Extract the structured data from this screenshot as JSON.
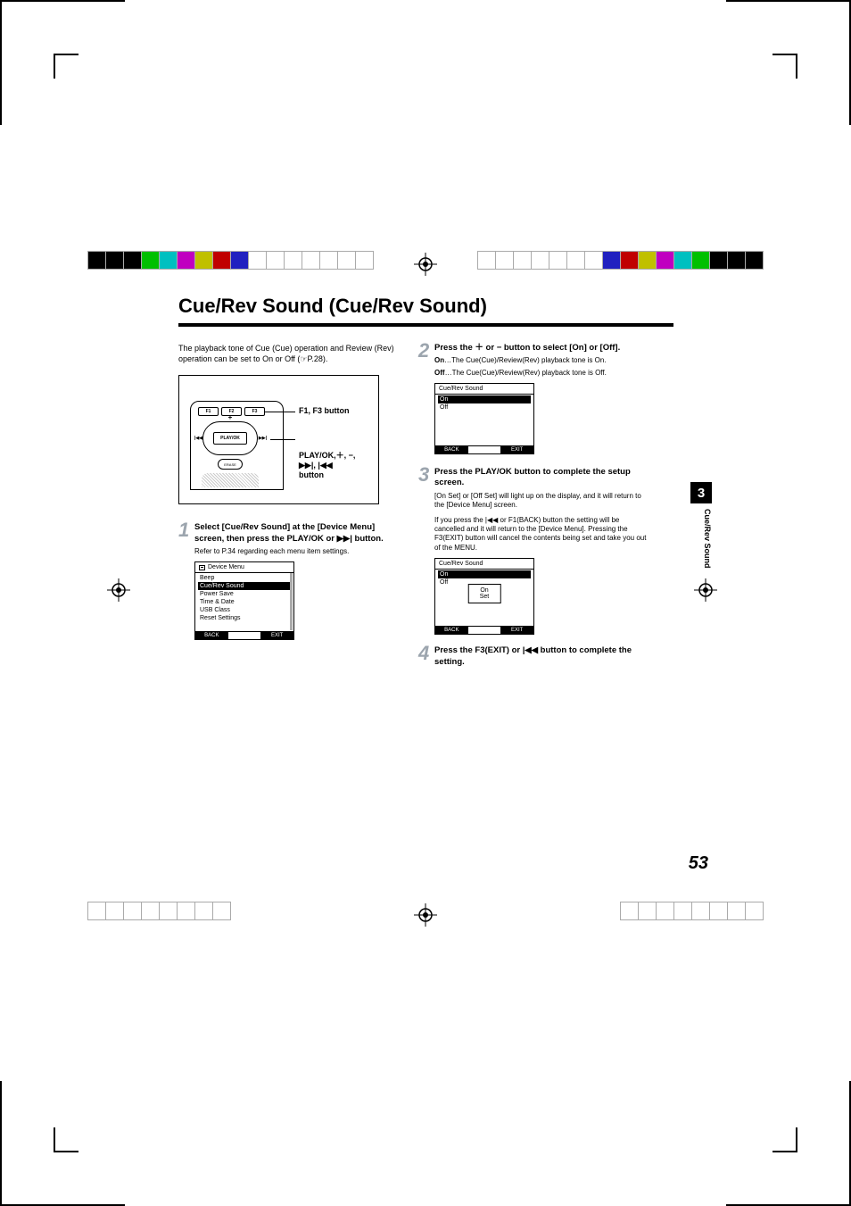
{
  "title": "Cue/Rev Sound (Cue/Rev Sound)",
  "intro": "The playback tone of Cue (Cue) operation and Review (Rev) operation can be set to On or Off (☞P.28).",
  "diagram": {
    "f1": "F1",
    "f2": "F2",
    "f3": "F3",
    "playok": "PLAY/OK",
    "erase": "ERASE",
    "label1": "F1, F3 button",
    "label2_a": "PLAY/OK,＋, −,",
    "label2_b": "▶▶|, |◀◀",
    "label2_c": "button"
  },
  "step1": {
    "num": "1",
    "head_a": "Select [Cue/Rev Sound] at the [Device Menu] screen, then press the ",
    "head_b": "PLAY/OK",
    "head_c": " or ▶▶| button.",
    "sub": "Refer to P.34 regarding each menu item settings.",
    "lcd": {
      "title": "Device Menu",
      "items": [
        "Beep",
        "Cue/Rev Sound",
        "Power Save",
        "Time & Date",
        "USB Class",
        "Reset Settings"
      ],
      "selected": 1,
      "back": "BACK",
      "exit": "EXIT"
    }
  },
  "step2": {
    "num": "2",
    "head_a": "Press the ＋ or − button to select [On] or [Off].",
    "opt_on_label": "On",
    "opt_on": "…The Cue(Cue)/Review(Rev) playback tone is On.",
    "opt_off_label": "Off",
    "opt_off": "…The Cue(Cue)/Review(Rev) playback tone is Off.",
    "lcd": {
      "title": "Cue/Rev Sound",
      "items": [
        "On",
        "Off"
      ],
      "selected": 0,
      "back": "BACK",
      "exit": "EXIT"
    }
  },
  "step3": {
    "num": "3",
    "head_a": "Press the ",
    "head_b": "PLAY/OK",
    "head_c": " button to complete the setup screen.",
    "sub1": "[On Set] or [Off Set] will light up on the display, and it will return to the [Device Menu] screen.",
    "sub2": "If you press the |◀◀ or F1(BACK) button the setting will be cancelled and it will return to the [Device Menu]. Pressing the F3(EXIT) button will cancel the contents being set and take you out of the MENU.",
    "lcd": {
      "title": "Cue/Rev Sound",
      "items": [
        "On",
        "Off"
      ],
      "selected": 0,
      "popup_l1": "On",
      "popup_l2": "Set",
      "back": "BACK",
      "exit": "EXIT"
    }
  },
  "step4": {
    "num": "4",
    "head_a": "Press the ",
    "head_b": "F3(EXIT)",
    "head_c": " or |◀◀ button to complete the setting."
  },
  "side": {
    "chapter": "3",
    "label": "Cue/Rev Sound"
  },
  "page_num": "53",
  "colors": {
    "step_num": "#9ca5ae",
    "text": "#000000",
    "bg": "#ffffff",
    "reg": [
      "#000000",
      "#00e000",
      "#00d0d0",
      "#d000d0",
      "#e0d000",
      "#d00000",
      "#3030e0",
      "#ffffff"
    ]
  }
}
